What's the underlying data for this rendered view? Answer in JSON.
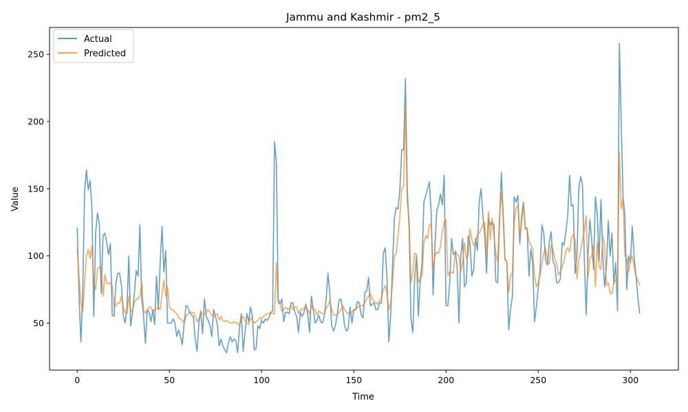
{
  "chart_data": {
    "type": "line",
    "title": "Jammu and Kashmir - pm2_5",
    "xlabel": "Time",
    "ylabel": "Value",
    "xlim": [
      -15,
      326
    ],
    "ylim": [
      15,
      270
    ],
    "xticks": [
      0,
      50,
      100,
      150,
      200,
      250,
      300
    ],
    "yticks": [
      50,
      100,
      150,
      200,
      250
    ],
    "grid": false,
    "legend_position": "upper-left",
    "series": [
      {
        "name": "Actual",
        "color": "#1f77b4",
        "values": [
          121,
          70,
          36,
          72,
          148,
          164,
          149,
          156,
          135,
          55,
          117,
          132,
          124,
          72,
          115,
          117,
          110,
          101,
          109,
          56,
          55,
          80,
          87,
          87,
          78,
          56,
          50,
          62,
          100,
          48,
          58,
          72,
          89,
          85,
          123,
          68,
          55,
          35,
          60,
          58,
          51,
          60,
          49,
          85,
          60,
          95,
          122,
          88,
          104,
          50,
          50,
          50,
          53,
          50,
          40,
          45,
          40,
          34,
          50,
          63,
          62,
          58,
          56,
          55,
          38,
          29,
          50,
          59,
          42,
          68,
          55,
          52,
          48,
          40,
          60,
          55,
          49,
          33,
          38,
          33,
          30,
          28,
          35,
          40,
          36,
          38,
          37,
          28,
          46,
          57,
          29,
          43,
          57,
          51,
          62,
          55,
          30,
          31,
          48,
          46,
          52,
          50,
          53,
          52,
          54,
          58,
          59,
          185,
          170,
          68,
          64,
          68,
          51,
          58,
          58,
          57,
          65,
          65,
          58,
          55,
          43,
          58,
          55,
          58,
          64,
          57,
          43,
          70,
          61,
          50,
          52,
          56,
          51,
          50,
          55,
          68,
          87,
          72,
          48,
          44,
          48,
          56,
          67,
          68,
          60,
          48,
          44,
          46,
          62,
          50,
          60,
          60,
          66,
          65,
          56,
          54,
          73,
          74,
          84,
          63,
          64,
          65,
          60,
          60,
          65,
          65,
          102,
          106,
          83,
          36,
          56,
          93,
          128,
          136,
          135,
          150,
          179,
          179,
          232,
          150,
          120,
          53,
          43,
          84,
          100,
          55,
          81,
          95,
          140,
          145,
          150,
          155,
          130,
          71,
          108,
          134,
          138,
          146,
          138,
          160,
          63,
          63,
          80,
          113,
          101,
          103,
          93,
          50,
          100,
          113,
          77,
          80,
          115,
          110,
          85,
          90,
          113,
          104,
          140,
          150,
          130,
          115,
          87,
          128,
          123,
          125,
          123,
          81,
          80,
          125,
          162,
          130,
          97,
          96,
          45,
          60,
          70,
          144,
          140,
          145,
          109,
          130,
          140,
          120,
          120,
          85,
          105,
          95,
          51,
          62,
          76,
          89,
          123,
          117,
          97,
          93,
          110,
          118,
          96,
          93,
          80,
          80,
          83,
          110,
          108,
          118,
          130,
          160,
          137,
          138,
          87,
          100,
          150,
          159,
          153,
          98,
          56,
          100,
          127,
          112,
          90,
          144,
          132,
          96,
          142,
          100,
          77,
          92,
          126,
          100,
          117,
          79,
          95,
          59,
          258,
          200,
          144,
          130,
          75,
          100,
          95,
          122,
          100,
          85,
          70,
          57
        ]
      },
      {
        "name": "Predicted",
        "color": "#ff7f0e",
        "values": [
          105,
          85,
          65,
          58,
          80,
          100,
          105,
          98,
          107,
          80,
          75,
          90,
          92,
          91,
          70,
          86,
          80,
          79,
          80,
          78,
          62,
          63,
          65,
          65,
          70,
          62,
          58,
          57,
          70,
          58,
          60,
          65,
          68,
          68,
          70,
          80,
          60,
          57,
          60,
          62,
          62,
          58,
          60,
          61,
          62,
          60,
          72,
          82,
          70,
          77,
          62,
          60,
          60,
          58,
          57,
          54,
          53,
          52,
          50,
          55,
          57,
          58,
          58,
          58,
          55,
          51,
          53,
          58,
          57,
          56,
          58,
          60,
          58,
          56,
          55,
          56,
          57,
          52,
          55,
          52,
          51,
          52,
          51,
          50,
          50,
          51,
          50,
          50,
          48,
          53,
          55,
          52,
          50,
          49,
          54,
          52,
          50,
          51,
          52,
          54,
          53,
          55,
          56,
          57,
          57,
          58,
          57,
          57,
          95,
          65,
          64,
          59,
          60,
          62,
          60,
          61,
          63,
          60,
          62,
          62,
          57,
          60,
          60,
          61,
          62,
          60,
          57,
          63,
          60,
          60,
          56,
          59,
          58,
          57,
          57,
          61,
          63,
          67,
          60,
          56,
          56,
          56,
          58,
          60,
          63,
          60,
          58,
          57,
          58,
          58,
          60,
          60,
          62,
          62,
          63,
          63,
          65,
          68,
          70,
          72,
          68,
          66,
          65,
          64,
          67,
          68,
          75,
          78,
          72,
          60,
          65,
          80,
          100,
          102,
          115,
          130,
          150,
          152,
          210,
          140,
          126,
          80,
          88,
          102,
          101,
          80,
          83,
          85,
          110,
          115,
          113,
          123,
          124,
          90,
          100,
          103,
          102,
          107,
          118,
          125,
          127,
          85,
          88,
          88,
          87,
          104,
          101,
          100,
          88,
          95,
          110,
          98,
          100,
          120,
          112,
          108,
          110,
          116,
          117,
          120,
          123,
          125,
          100,
          133,
          112,
          128,
          115,
          102,
          95,
          128,
          147,
          130,
          98,
          95,
          73,
          85,
          88,
          126,
          135,
          138,
          115,
          125,
          137,
          121,
          121,
          111,
          108,
          105,
          85,
          77,
          80,
          86,
          94,
          102,
          106,
          97,
          94,
          108,
          105,
          98,
          94,
          86,
          88,
          92,
          96,
          104,
          106,
          103,
          113,
          116,
          112,
          83,
          97,
          103,
          112,
          118,
          130,
          84,
          98,
          100,
          108,
          77,
          110,
          92,
          90,
          115,
          108,
          78,
          80,
          72,
          72,
          80,
          82,
          80,
          177,
          135,
          143,
          100,
          98,
          88,
          97,
          100,
          92,
          85,
          82,
          78
        ]
      }
    ]
  }
}
